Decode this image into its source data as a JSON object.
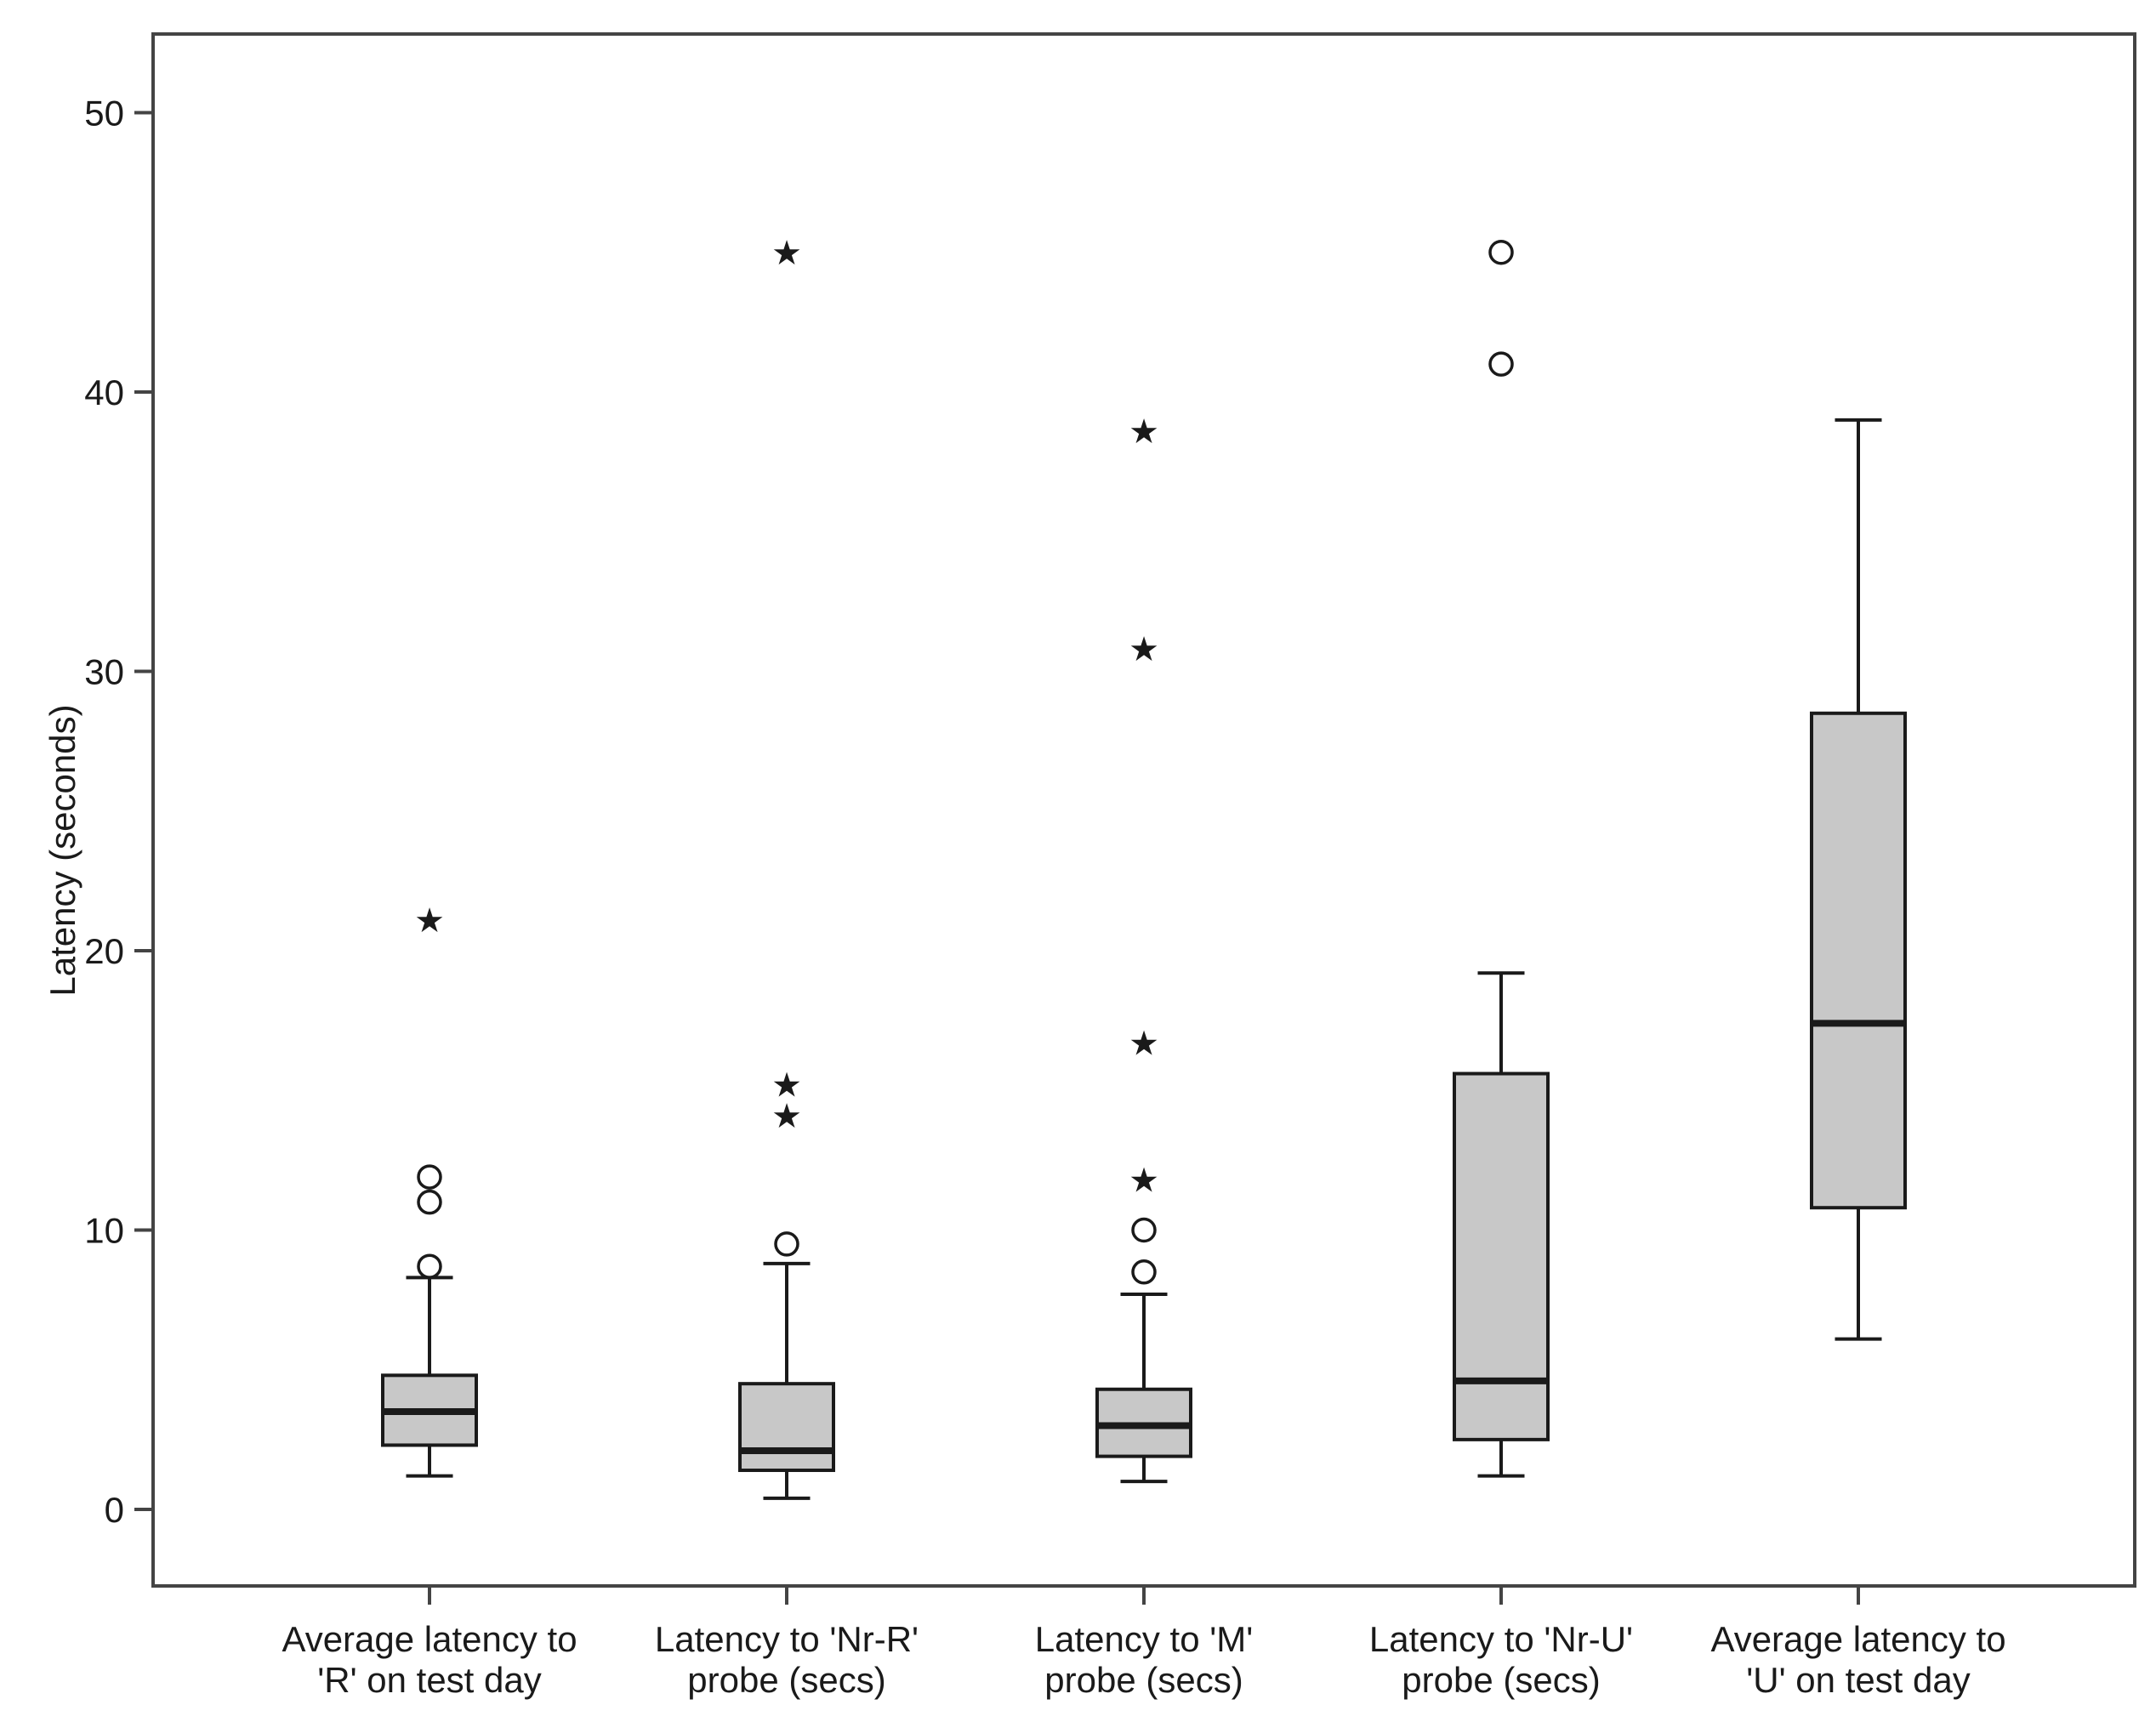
{
  "chart_data": {
    "type": "box",
    "ylabel": "Latency (seconds)",
    "ylim": [
      -5,
      53
    ],
    "yticks": [
      0,
      10,
      20,
      30,
      40,
      50
    ],
    "grid": false,
    "legend": "none",
    "colors": {
      "box_fill": "#c8c8c8",
      "stroke": "#1a1a1a",
      "frame": "#444444",
      "background": "#ffffff"
    },
    "categories": [
      {
        "line1": "Average latency to",
        "line2": "'R' on test day"
      },
      {
        "line1": "Latency to 'Nr-R'",
        "line2": "probe (secs)"
      },
      {
        "line1": "Latency to 'M'",
        "line2": "probe (secs)"
      },
      {
        "line1": "Latency to 'Nr-U'",
        "line2": "probe (secs)"
      },
      {
        "line1": "Average latency to",
        "line2": "'U' on test day"
      }
    ],
    "boxes": [
      {
        "whisker_low": 1.2,
        "q1": 2.3,
        "median": 3.5,
        "q3": 4.8,
        "whisker_high": 8.3,
        "outliers": [
          8.7,
          11.0,
          11.9
        ],
        "extremes": [
          21.1
        ]
      },
      {
        "whisker_low": 0.4,
        "q1": 1.4,
        "median": 2.1,
        "q3": 4.5,
        "whisker_high": 8.8,
        "outliers": [
          9.5
        ],
        "extremes": [
          14.1,
          15.2,
          45.0
        ]
      },
      {
        "whisker_low": 1.0,
        "q1": 1.9,
        "median": 3.0,
        "q3": 4.3,
        "whisker_high": 7.7,
        "outliers": [
          8.5,
          10.0
        ],
        "extremes": [
          11.8,
          16.7,
          30.8,
          38.6
        ]
      },
      {
        "whisker_low": 1.2,
        "q1": 2.5,
        "median": 4.6,
        "q3": 15.6,
        "whisker_high": 19.2,
        "outliers": [
          41.0,
          45.0
        ],
        "extremes": []
      },
      {
        "whisker_low": 6.1,
        "q1": 10.8,
        "median": 17.4,
        "q3": 28.5,
        "whisker_high": 39.0,
        "outliers": [],
        "extremes": []
      }
    ]
  }
}
